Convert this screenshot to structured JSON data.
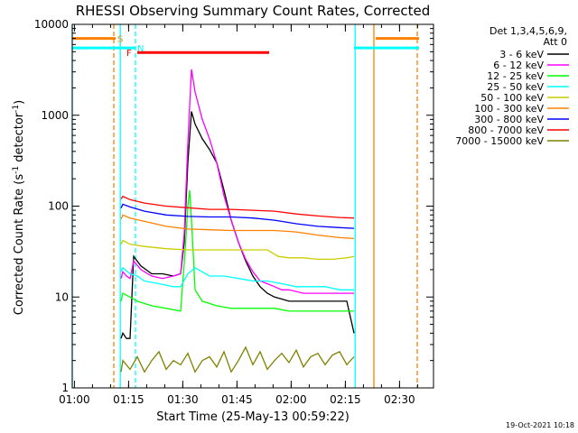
{
  "chart_data": {
    "type": "line",
    "title": "RHESSI Observing Summary Count Rates, Corrected",
    "xlabel": "Start Time (25-May-13 00:59:22)",
    "ylabel_main": "Corrected Count Rate (s",
    "ylabel_sup1": "-1",
    "ylabel_mid": " detector",
    "ylabel_sup2": "-1",
    "ylabel_end": ")",
    "xlim": [
      0,
      100
    ],
    "ylim": [
      1,
      10000
    ],
    "yscale": "log",
    "x_ticks": [
      {
        "value": 0.6,
        "label": "01:00"
      },
      {
        "value": 15.6,
        "label": "01:15"
      },
      {
        "value": 30.6,
        "label": "01:30"
      },
      {
        "value": 45.6,
        "label": "01:45"
      },
      {
        "value": 60.6,
        "label": "02:00"
      },
      {
        "value": 75.6,
        "label": "02:15"
      },
      {
        "value": 90.6,
        "label": "02:30"
      }
    ],
    "y_ticks": [
      {
        "value": 1,
        "label": "1"
      },
      {
        "value": 10,
        "label": "10"
      },
      {
        "value": 100,
        "label": "100"
      },
      {
        "value": 1000,
        "label": "1000"
      },
      {
        "value": 10000,
        "label": "10000"
      }
    ],
    "legend_header": [
      "Det 1,3,4,5,6,9,",
      "Att 0"
    ],
    "series": [
      {
        "name": "3 - 6 keV",
        "color": "#000000",
        "x": [
          13.5,
          14,
          15,
          16,
          17,
          19,
          22,
          25,
          28,
          30,
          31,
          32,
          33,
          34,
          36,
          38,
          40,
          42,
          44,
          46,
          48,
          50,
          52,
          54,
          56,
          58,
          60,
          64,
          68,
          72,
          76,
          78
        ],
        "y": [
          3.5,
          4,
          3.5,
          3.5,
          28,
          22,
          18,
          18,
          17,
          18,
          40,
          300,
          1100,
          800,
          550,
          420,
          300,
          150,
          70,
          40,
          25,
          17,
          13,
          11,
          10,
          9.5,
          9,
          9,
          9,
          9,
          9,
          4
        ]
      },
      {
        "name": "6 - 12 keV",
        "color": "#ff00ff",
        "x": [
          13.5,
          14,
          15,
          16,
          17,
          19,
          22,
          25,
          28,
          30,
          31,
          32,
          33,
          34,
          36,
          38,
          40,
          42,
          44,
          46,
          48,
          50,
          52,
          54,
          56,
          58,
          60,
          64,
          68,
          72,
          76,
          78
        ],
        "y": [
          16,
          19,
          17,
          16,
          25,
          20,
          17,
          16,
          17,
          18,
          50,
          500,
          3200,
          1800,
          900,
          550,
          300,
          130,
          70,
          40,
          26,
          19,
          15,
          14,
          13,
          12,
          12,
          11,
          11,
          11,
          11,
          11
        ]
      },
      {
        "name": "12 - 25 keV",
        "color": "#00ff00",
        "x": [
          13.5,
          14,
          16,
          18,
          22,
          26,
          30,
          31.2,
          32,
          32.5,
          33,
          33.5,
          34,
          36,
          40,
          44,
          50,
          56,
          60,
          66,
          72,
          78
        ],
        "y": [
          9,
          11,
          10,
          9,
          8,
          7.5,
          7,
          30,
          100,
          150,
          70,
          30,
          12,
          9,
          8,
          7.5,
          7.5,
          7.5,
          7,
          7,
          7,
          7
        ]
      },
      {
        "name": "25 - 50 keV",
        "color": "#00ffff",
        "x": [
          13.5,
          14,
          16,
          18,
          20,
          24,
          28,
          30,
          32,
          34,
          38,
          42,
          46,
          50,
          54,
          58,
          62,
          66,
          70,
          74,
          78
        ],
        "y": [
          19,
          21,
          18,
          17,
          15,
          14,
          13,
          13,
          18,
          21,
          17,
          17,
          16,
          15,
          15,
          14,
          13,
          13,
          13,
          12,
          12
        ]
      },
      {
        "name": "50 - 100 keV",
        "color": "#cccc00",
        "x": [
          13.5,
          14,
          16,
          20,
          26,
          32,
          38,
          44,
          50,
          54,
          57,
          60,
          64,
          68,
          72,
          76,
          78
        ],
        "y": [
          38,
          42,
          38,
          36,
          34,
          33,
          33,
          33,
          33,
          33,
          28,
          27,
          27,
          26,
          26,
          27,
          28
        ]
      },
      {
        "name": "100 - 300 keV",
        "color": "#ff8000",
        "x": [
          13.5,
          14,
          16,
          20,
          26,
          32,
          38,
          44,
          50,
          56,
          62,
          68,
          74,
          78
        ],
        "y": [
          72,
          80,
          74,
          68,
          60,
          56,
          55,
          54,
          54,
          54,
          52,
          48,
          45,
          44
        ]
      },
      {
        "name": "300 - 800 keV",
        "color": "#0000ff",
        "x": [
          13.5,
          14,
          16,
          20,
          26,
          32,
          38,
          44,
          50,
          56,
          62,
          68,
          74,
          78
        ],
        "y": [
          95,
          105,
          98,
          88,
          80,
          77,
          76,
          76,
          74,
          70,
          64,
          60,
          58,
          57
        ]
      },
      {
        "name": "800 - 7000 keV",
        "color": "#ff0000",
        "x": [
          13.5,
          14,
          16,
          20,
          26,
          32,
          38,
          44,
          50,
          56,
          62,
          68,
          74,
          78
        ],
        "y": [
          120,
          128,
          118,
          108,
          100,
          96,
          92,
          92,
          90,
          88,
          82,
          78,
          75,
          74
        ]
      },
      {
        "name": "7000 - 15000 keV",
        "color": "#808000",
        "x": [
          13.5,
          14,
          16,
          18,
          20,
          22,
          24,
          26,
          28,
          30,
          32,
          34,
          36,
          38,
          40,
          42,
          44,
          46,
          48,
          50,
          52,
          54,
          56,
          58,
          60,
          62,
          64,
          66,
          68,
          70,
          72,
          74,
          76,
          78
        ],
        "y": [
          1.5,
          2,
          1.6,
          2.2,
          1.5,
          2,
          2.5,
          1.6,
          2,
          1.8,
          2.4,
          1.5,
          2,
          2.2,
          1.7,
          2.5,
          1.5,
          2,
          2.8,
          1.8,
          2.5,
          1.6,
          2,
          2.4,
          1.9,
          2.6,
          1.7,
          2.2,
          2.4,
          1.8,
          2.3,
          2.5,
          1.8,
          2.2
        ]
      }
    ],
    "annotations": [
      {
        "label": "S",
        "color": "#ff8000",
        "y": 7000,
        "segments": [
          [
            0,
            12
          ],
          [
            84,
            96
          ]
        ]
      },
      {
        "label": "N",
        "color": "#00ffff",
        "y": 5500,
        "segments": [
          [
            0,
            17.5
          ],
          [
            78,
            96
          ]
        ]
      },
      {
        "label": "F",
        "color": "#ff0000",
        "y": 4900,
        "segments": [
          [
            18,
            54.5
          ]
        ]
      }
    ],
    "vertical_markers": [
      {
        "x": 0,
        "color": "#00ffff",
        "style": "solid"
      },
      {
        "x": 11.5,
        "color": "#ff8000",
        "style": "dashed"
      },
      {
        "x": 13.3,
        "color": "#00ffff",
        "style": "solid"
      },
      {
        "x": 17.5,
        "color": "#00ffff",
        "style": "dashed"
      },
      {
        "x": 78.3,
        "color": "#00ffff",
        "style": "solid"
      },
      {
        "x": 83.5,
        "color": "#ff8000",
        "style": "solid"
      },
      {
        "x": 95.5,
        "color": "#ff8000",
        "style": "dashed"
      }
    ],
    "timestamp": "19-Oct-2021 10:18"
  }
}
